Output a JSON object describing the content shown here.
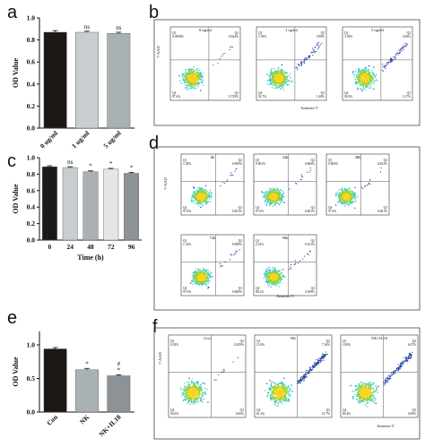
{
  "panels": {
    "a": "a",
    "b": "b",
    "c": "c",
    "d": "d",
    "e": "e",
    "f": "f"
  },
  "colors": {
    "black": "#1c1816",
    "light_gray": "#c8cdcf",
    "mid_gray": "#a9b1b4",
    "very_light": "#e5e6e6",
    "dark_gray": "#8d9296",
    "flow_blue": "#1f3f9e",
    "flow_cyan": "#2ec4c8",
    "flow_green": "#8ed43a",
    "flow_yellow": "#ffd21f"
  },
  "chart_data": [
    {
      "type": "bar",
      "panel": "a",
      "categories": [
        "0 ug/ml",
        "1 ug/ml",
        "5 ug/ml"
      ],
      "values": [
        0.87,
        0.87,
        0.86
      ],
      "errors": [
        0.015,
        0.01,
        0.01
      ],
      "annotations": [
        "",
        "ns",
        "ns"
      ],
      "ylabel": "OD Value",
      "ylim": [
        0,
        1.0
      ],
      "yticks": [
        "0.0",
        "0.2",
        "0.4",
        "0.6",
        "0.8",
        "1.0"
      ],
      "ytick_values": [
        0,
        0.2,
        0.4,
        0.6,
        0.8,
        1.0
      ],
      "bar_colors": [
        "#1c1816",
        "#c8cdcf",
        "#a9b1b4"
      ]
    },
    {
      "type": "bar",
      "panel": "c",
      "categories": [
        "0",
        "24",
        "48",
        "72",
        "96"
      ],
      "values": [
        0.89,
        0.88,
        0.83,
        0.86,
        0.81
      ],
      "errors": [
        0.012,
        0.01,
        0.01,
        0.01,
        0.012
      ],
      "annotations": [
        "",
        "ns",
        "*",
        "*",
        "*"
      ],
      "xlabel": "Time (h)",
      "ylabel": "OD Value",
      "ylim": [
        0,
        1.0
      ],
      "yticks": [
        "0.0",
        "0.2",
        "0.4",
        "0.6",
        "0.8",
        "1.0"
      ],
      "ytick_values": [
        0,
        0.2,
        0.4,
        0.6,
        0.8,
        1.0
      ],
      "bar_colors": [
        "#1c1816",
        "#c8cdcf",
        "#a9b1b4",
        "#e5e6e6",
        "#8d9296"
      ]
    },
    {
      "type": "bar",
      "panel": "e",
      "categories": [
        "Con",
        "NK",
        "NK+IL18"
      ],
      "values": [
        0.94,
        0.63,
        0.54
      ],
      "errors": [
        0.02,
        0.02,
        0.015
      ],
      "annotations": [
        "",
        "*",
        "#\n*"
      ],
      "ylabel": "OD Value",
      "ylim": [
        0,
        1.2
      ],
      "yticks": [
        "0.0",
        "0.5",
        "1.0"
      ],
      "ytick_values": [
        0,
        0.5,
        1.0
      ],
      "bar_colors": [
        "#1c1816",
        "#a9b1b4",
        "#8d9296"
      ]
    },
    {
      "type": "scatter",
      "panel": "b",
      "plots": [
        {
          "title": "0 ug/ml",
          "q1": "0.0958%",
          "q2": "0.624%",
          "q3": "0.729%",
          "q4": "97.6%"
        },
        {
          "title": "1 ug/ml",
          "q1": "1.95%",
          "q2": "3.98%",
          "q3": "1.48%",
          "q4": "92.7%"
        },
        {
          "title": "5 ug/ml",
          "q1": "3.59%",
          "q2": "2.08%",
          "q3": "1.37%",
          "q4": "92.9%"
        }
      ],
      "xlabel": "Annexin V",
      "ylabel": "7-AAD"
    },
    {
      "type": "scatter",
      "panel": "d",
      "plots": [
        {
          "title": "0h",
          "q1": "1.28%",
          "q2": "0.900%",
          "q3": "0.851%",
          "q4": "97.0%"
        },
        {
          "title": "24h",
          "q1": "0.961%",
          "q2": "0.860%",
          "q3": "0.601%",
          "q4": "97.6%"
        },
        {
          "title": "48h",
          "q1": "0.963%",
          "q2": "0.823%",
          "q3": "0.601%",
          "q4": "97.6%"
        },
        {
          "title": "72h",
          "q1": "1.33%",
          "q2": "0.998%",
          "q3": "0.680%",
          "q4": "97.0%"
        },
        {
          "title": "96h",
          "q1": "2.01%",
          "q2": "0.351%",
          "q3": "0.189%",
          "q4": "98.2%"
        }
      ],
      "xlabel": "Annexin V",
      "ylabel": "7-AAD"
    },
    {
      "type": "scatter",
      "panel": "f",
      "plots": [
        {
          "title": "Con",
          "q1": "0.92%",
          "q2": "0.459%",
          "q3": "0.60%",
          "q4": "94.6%"
        },
        {
          "title": "NK",
          "q1": "11.0%",
          "q2": "7.16%",
          "q3": "12.7%",
          "q4": "61.2%"
        },
        {
          "title": "NK+IL18",
          "q1": "10.8%",
          "q2": "6.47%",
          "q3": "4.00%",
          "q4": "80.4%"
        }
      ],
      "xlabel": "Annexin V",
      "ylabel": "7-AAD"
    }
  ]
}
